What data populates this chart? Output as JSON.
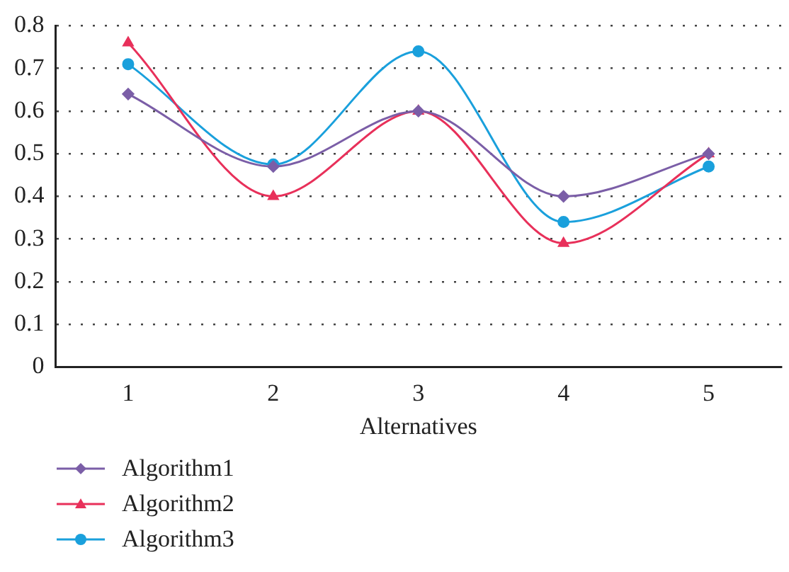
{
  "chart_data": {
    "type": "line",
    "xlabel": "Alternatives",
    "categories": [
      "1",
      "2",
      "3",
      "4",
      "5"
    ],
    "series": [
      {
        "name": "Algorithm1",
        "color": "#7b5ea7",
        "marker": "diamond",
        "values": [
          0.64,
          0.47,
          0.6,
          0.4,
          0.5
        ]
      },
      {
        "name": "Algorithm2",
        "color": "#e8305a",
        "marker": "triangle",
        "values": [
          0.76,
          0.4,
          0.6,
          0.29,
          0.5
        ]
      },
      {
        "name": "Algorithm3",
        "color": "#1aa0dc",
        "marker": "circle",
        "values": [
          0.71,
          0.475,
          0.74,
          0.34,
          0.47
        ]
      }
    ],
    "ylim": [
      0,
      0.8
    ],
    "yticks": [
      0,
      0.1,
      0.2,
      0.3,
      0.4,
      0.5,
      0.6,
      0.7,
      0.8
    ],
    "grid": "y",
    "legend": "bottom left"
  }
}
